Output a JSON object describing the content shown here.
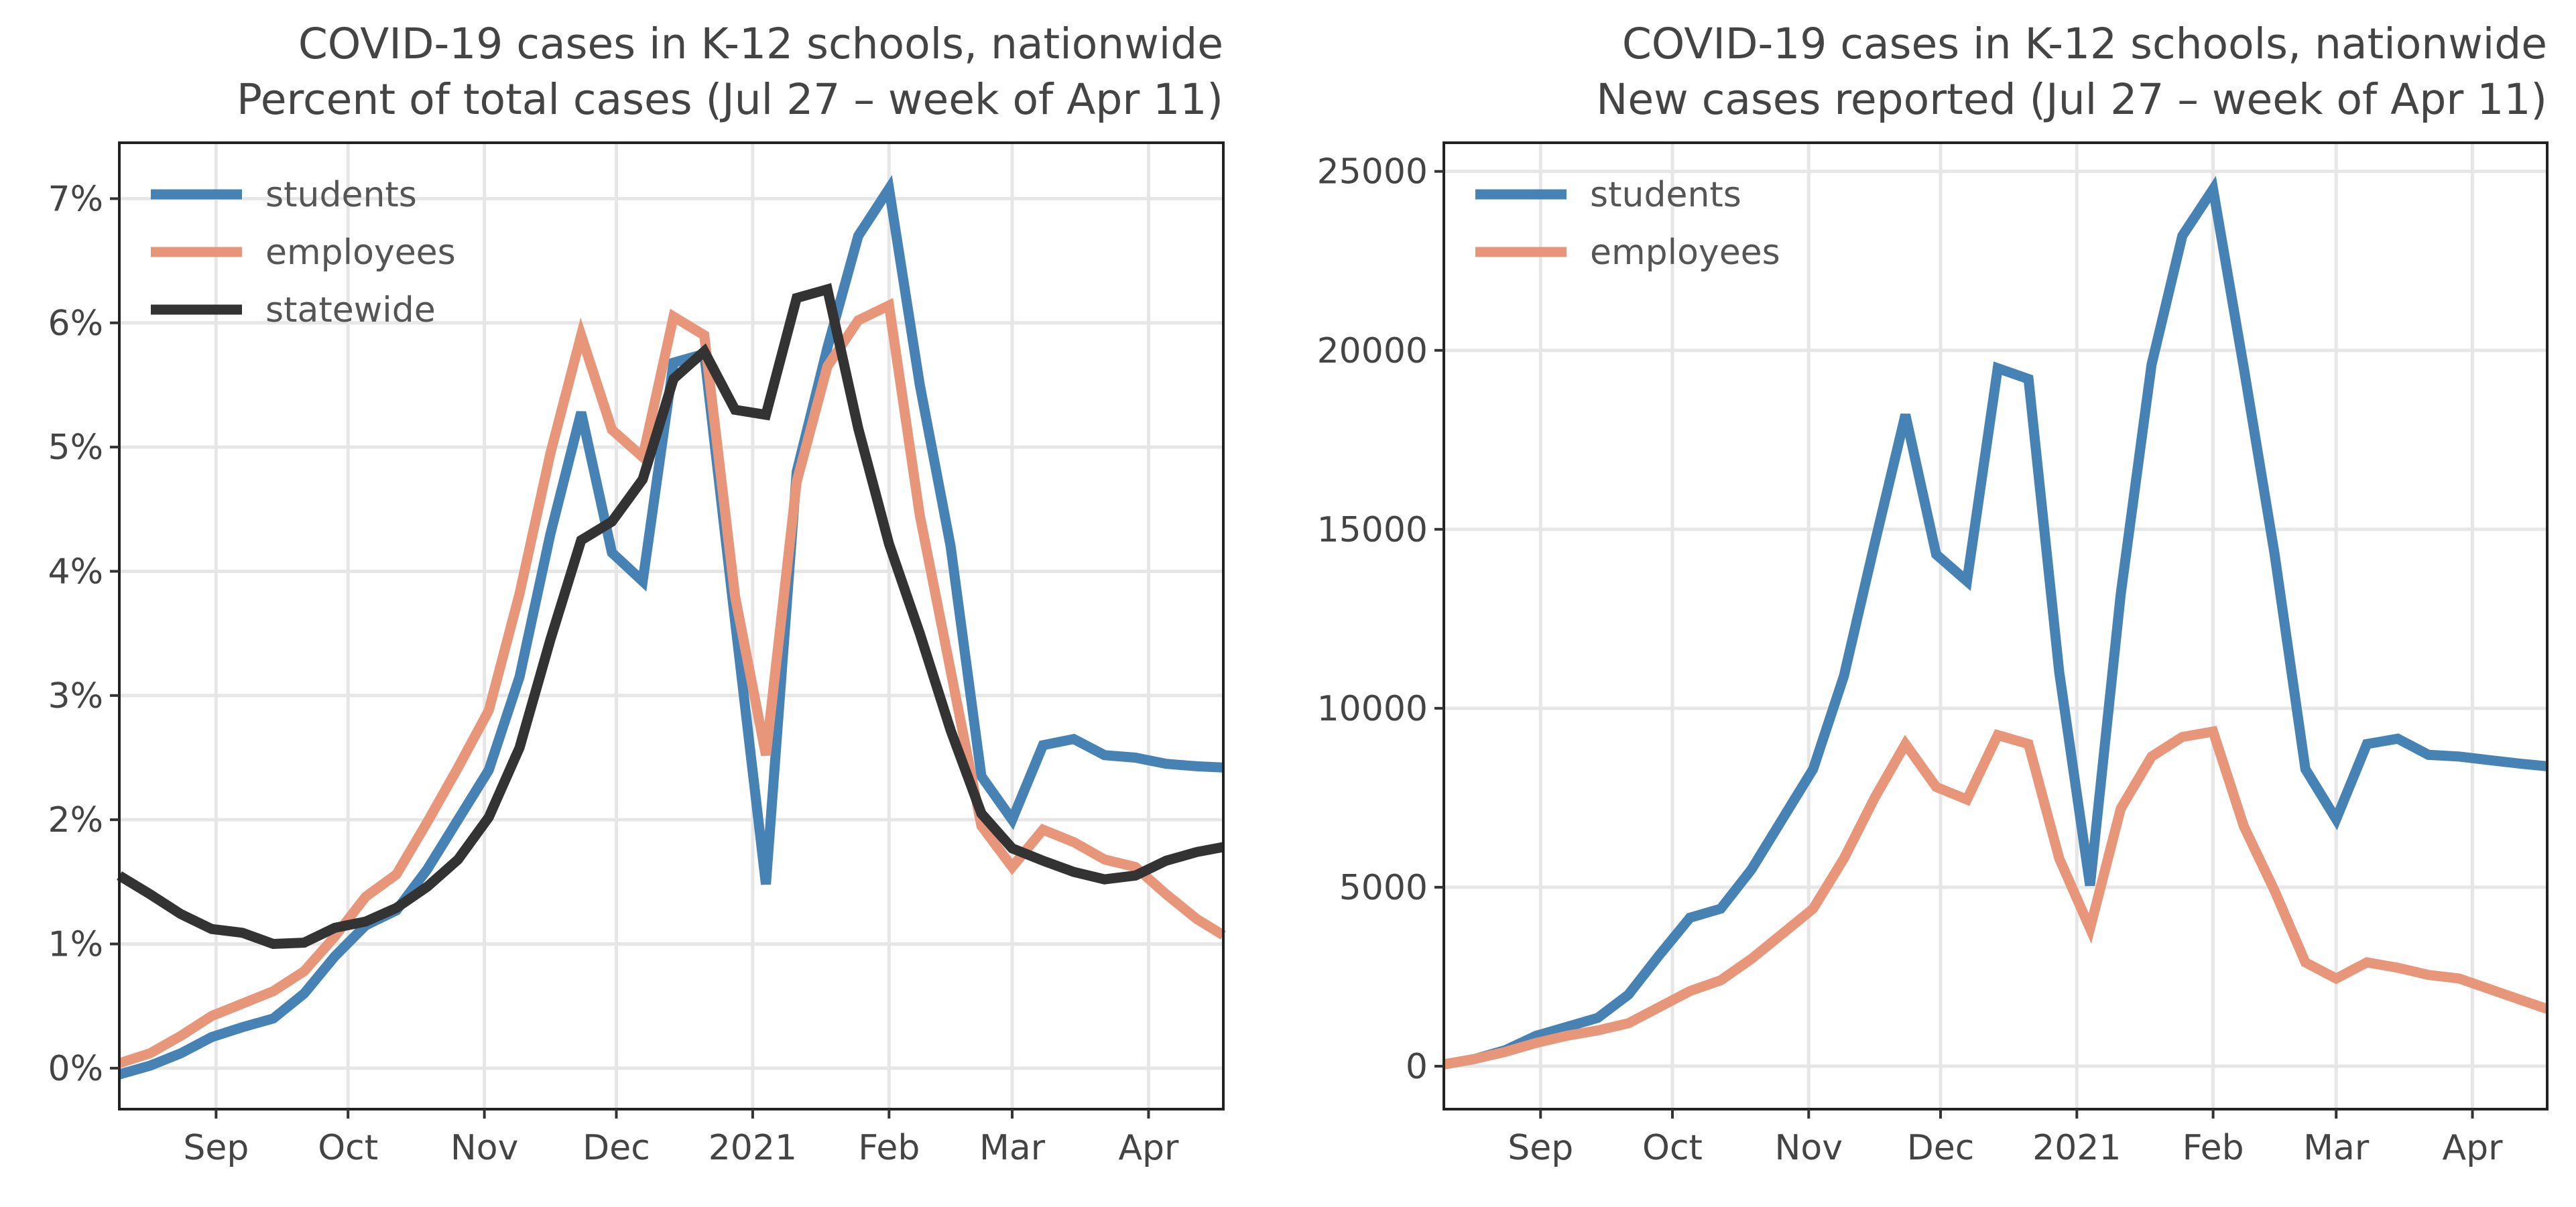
{
  "chart_data": [
    {
      "type": "line",
      "title": "COVID-19 cases in K-12 schools, nationwide",
      "subtitle": "Percent of total cases (Jul 27 – week of Apr 11)",
      "xlabel": "",
      "ylabel": "",
      "x_ticks": [
        "Sep",
        "Oct",
        "Nov",
        "Dec",
        "2021",
        "Feb",
        "Mar",
        "Apr"
      ],
      "y_ticks": [
        "0%",
        "1%",
        "2%",
        "3%",
        "4%",
        "5%",
        "6%",
        "7%"
      ],
      "y_tick_values": [
        0,
        1,
        2,
        3,
        4,
        5,
        6,
        7
      ],
      "ylim": [
        -0.33,
        7.45
      ],
      "xlim": [
        "2020-08-10",
        "2021-04-18"
      ],
      "grid": true,
      "legend": "top-left",
      "series": [
        {
          "name": "students",
          "color": "#4682b4",
          "x": [
            "2020-08-10",
            "2020-08-17",
            "2020-08-24",
            "2020-08-31",
            "2020-09-07",
            "2020-09-14",
            "2020-09-21",
            "2020-09-28",
            "2020-10-05",
            "2020-10-12",
            "2020-10-19",
            "2020-10-26",
            "2020-11-02",
            "2020-11-09",
            "2020-11-16",
            "2020-11-23",
            "2020-11-30",
            "2020-12-07",
            "2020-12-14",
            "2020-12-21",
            "2020-12-28",
            "2021-01-04",
            "2021-01-11",
            "2021-01-18",
            "2021-01-25",
            "2021-02-01",
            "2021-02-08",
            "2021-02-15",
            "2021-02-22",
            "2021-03-01",
            "2021-03-08",
            "2021-03-15",
            "2021-03-22",
            "2021-03-29",
            "2021-04-05",
            "2021-04-12",
            "2021-04-18"
          ],
          "values": [
            -0.05,
            0.02,
            0.12,
            0.25,
            0.33,
            0.4,
            0.6,
            0.9,
            1.15,
            1.27,
            1.6,
            2.0,
            2.4,
            3.15,
            4.3,
            5.28,
            4.15,
            3.92,
            5.68,
            5.75,
            3.6,
            1.48,
            4.8,
            5.8,
            6.7,
            7.08,
            5.5,
            4.2,
            2.35,
            2.0,
            2.6,
            2.65,
            2.52,
            2.5,
            2.45,
            2.43,
            2.42
          ]
        },
        {
          "name": "employees",
          "color": "#e8967a",
          "x": [
            "2020-08-10",
            "2020-08-17",
            "2020-08-24",
            "2020-08-31",
            "2020-09-07",
            "2020-09-14",
            "2020-09-21",
            "2020-09-28",
            "2020-10-05",
            "2020-10-12",
            "2020-10-19",
            "2020-10-26",
            "2020-11-02",
            "2020-11-09",
            "2020-11-16",
            "2020-11-23",
            "2020-11-30",
            "2020-12-07",
            "2020-12-14",
            "2020-12-21",
            "2020-12-28",
            "2021-01-04",
            "2021-01-11",
            "2021-01-18",
            "2021-01-25",
            "2021-02-01",
            "2021-02-08",
            "2021-02-15",
            "2021-02-22",
            "2021-03-01",
            "2021-03-08",
            "2021-03-15",
            "2021-03-22",
            "2021-03-29",
            "2021-04-05",
            "2021-04-12",
            "2021-04-18"
          ],
          "values": [
            0.04,
            0.12,
            0.26,
            0.42,
            0.52,
            0.62,
            0.78,
            1.06,
            1.38,
            1.56,
            1.98,
            2.42,
            2.88,
            3.82,
            4.95,
            5.9,
            5.14,
            4.92,
            6.05,
            5.9,
            3.8,
            2.52,
            4.72,
            5.65,
            6.02,
            6.14,
            4.45,
            3.2,
            1.95,
            1.62,
            1.92,
            1.82,
            1.68,
            1.62,
            1.4,
            1.2,
            1.07
          ]
        },
        {
          "name": "statewide",
          "color": "#333333",
          "x": [
            "2020-08-10",
            "2020-08-17",
            "2020-08-24",
            "2020-08-31",
            "2020-09-07",
            "2020-09-14",
            "2020-09-21",
            "2020-09-28",
            "2020-10-05",
            "2020-10-12",
            "2020-10-19",
            "2020-10-26",
            "2020-11-02",
            "2020-11-09",
            "2020-11-16",
            "2020-11-23",
            "2020-11-30",
            "2020-12-07",
            "2020-12-14",
            "2020-12-21",
            "2020-12-28",
            "2021-01-04",
            "2021-01-11",
            "2021-01-18",
            "2021-01-25",
            "2021-02-01",
            "2021-02-08",
            "2021-02-15",
            "2021-02-22",
            "2021-03-01",
            "2021-03-08",
            "2021-03-15",
            "2021-03-22",
            "2021-03-29",
            "2021-04-05",
            "2021-04-12",
            "2021-04-18"
          ],
          "values": [
            1.55,
            1.4,
            1.24,
            1.12,
            1.09,
            1.0,
            1.01,
            1.13,
            1.18,
            1.29,
            1.46,
            1.68,
            2.02,
            2.58,
            3.45,
            4.25,
            4.4,
            4.74,
            5.55,
            5.77,
            5.3,
            5.26,
            6.2,
            6.27,
            5.15,
            4.22,
            3.5,
            2.72,
            2.05,
            1.77,
            1.67,
            1.58,
            1.52,
            1.55,
            1.67,
            1.74,
            1.78
          ]
        }
      ]
    },
    {
      "type": "line",
      "title": "COVID-19 cases in K-12 schools, nationwide",
      "subtitle": "New cases reported (Jul 27 – week of Apr 11)",
      "xlabel": "",
      "ylabel": "",
      "x_ticks": [
        "Sep",
        "Oct",
        "Nov",
        "Dec",
        "2021",
        "Feb",
        "Mar",
        "Apr"
      ],
      "y_ticks": [
        "0",
        "5000",
        "10000",
        "15000",
        "20000",
        "25000"
      ],
      "y_tick_values": [
        0,
        5000,
        10000,
        15000,
        20000,
        25000
      ],
      "ylim": [
        -1200,
        25800
      ],
      "xlim": [
        "2020-08-10",
        "2021-04-18"
      ],
      "grid": true,
      "legend": "top-left",
      "series": [
        {
          "name": "students",
          "color": "#4682b4",
          "x": [
            "2020-08-10",
            "2020-08-17",
            "2020-08-24",
            "2020-08-31",
            "2020-09-07",
            "2020-09-14",
            "2020-09-21",
            "2020-09-28",
            "2020-10-05",
            "2020-10-12",
            "2020-10-19",
            "2020-10-26",
            "2020-11-02",
            "2020-11-09",
            "2020-11-16",
            "2020-11-23",
            "2020-11-30",
            "2020-12-07",
            "2020-12-14",
            "2020-12-21",
            "2020-12-28",
            "2021-01-04",
            "2021-01-11",
            "2021-01-18",
            "2021-01-25",
            "2021-02-01",
            "2021-02-08",
            "2021-02-15",
            "2021-02-22",
            "2021-03-01",
            "2021-03-08",
            "2021-03-15",
            "2021-03-22",
            "2021-03-29",
            "2021-04-05",
            "2021-04-12",
            "2021-04-18"
          ],
          "values": [
            50,
            200,
            450,
            850,
            1100,
            1350,
            2000,
            3100,
            4150,
            4400,
            5500,
            6900,
            8300,
            10900,
            14600,
            18200,
            14300,
            13550,
            19500,
            19200,
            11000,
            5050,
            13200,
            19600,
            23200,
            24500,
            19500,
            14300,
            8300,
            6900,
            9000,
            9150,
            8700,
            8650,
            8550,
            8450,
            8380
          ]
        },
        {
          "name": "employees",
          "color": "#e8967a",
          "x": [
            "2020-08-10",
            "2020-08-17",
            "2020-08-24",
            "2020-08-31",
            "2020-09-07",
            "2020-09-14",
            "2020-09-21",
            "2020-09-28",
            "2020-10-05",
            "2020-10-12",
            "2020-10-19",
            "2020-10-26",
            "2020-11-02",
            "2020-11-09",
            "2020-11-16",
            "2020-11-23",
            "2020-11-30",
            "2020-12-07",
            "2020-12-14",
            "2020-12-21",
            "2020-12-28",
            "2021-01-04",
            "2021-01-11",
            "2021-01-18",
            "2021-01-25",
            "2021-02-01",
            "2021-02-08",
            "2021-02-15",
            "2021-02-22",
            "2021-03-01",
            "2021-03-08",
            "2021-03-15",
            "2021-03-22",
            "2021-03-29",
            "2021-04-05",
            "2021-04-12",
            "2021-04-18"
          ],
          "values": [
            50,
            200,
            400,
            650,
            850,
            1000,
            1200,
            1650,
            2100,
            2400,
            3000,
            3700,
            4400,
            5800,
            7500,
            9000,
            7800,
            7450,
            9250,
            9000,
            5800,
            3850,
            7200,
            8650,
            9200,
            9350,
            6700,
            4900,
            2900,
            2450,
            2900,
            2750,
            2550,
            2450,
            2150,
            1850,
            1600
          ]
        }
      ]
    }
  ]
}
